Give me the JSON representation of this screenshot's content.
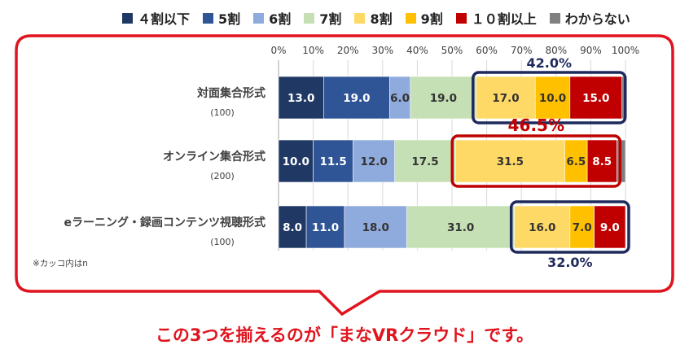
{
  "legend": [
    {
      "label": "４割以下",
      "color": "#1f3864"
    },
    {
      "label": "5割",
      "color": "#2f5597"
    },
    {
      "label": "6割",
      "color": "#8faadc"
    },
    {
      "label": "7割",
      "color": "#c5e0b4"
    },
    {
      "label": "8割",
      "color": "#ffd966"
    },
    {
      "label": "9割",
      "color": "#ffc000"
    },
    {
      "label": "１０割以上",
      "color": "#c00000"
    },
    {
      "label": "わからない",
      "color": "#808080"
    }
  ],
  "note": "※カッコ内はn",
  "caption": "この3つを揃えるのが「まなVRクラウド」です。",
  "chart_data": {
    "type": "bar",
    "orientation": "horizontal",
    "stacked": true,
    "xlim": [
      0,
      100
    ],
    "xticks": [
      "0%",
      "10%",
      "20%",
      "30%",
      "40%",
      "50%",
      "60%",
      "70%",
      "80%",
      "90%",
      "100%"
    ],
    "grid": true,
    "legend_position": "top",
    "categories": [
      {
        "label": "対面集合形式",
        "n": "(100)"
      },
      {
        "label": "オンライン集合形式",
        "n": "(200)"
      },
      {
        "label": "eラーニング・録画コンテンツ視聴形式",
        "n": "(100)"
      }
    ],
    "series": [
      {
        "name": "４割以下",
        "values": [
          13.0,
          10.0,
          8.0
        ]
      },
      {
        "name": "5割",
        "values": [
          19.0,
          11.5,
          11.0
        ]
      },
      {
        "name": "6割",
        "values": [
          6.0,
          12.0,
          18.0
        ]
      },
      {
        "name": "7割",
        "values": [
          19.0,
          17.5,
          31.0
        ]
      },
      {
        "name": "8割",
        "values": [
          17.0,
          31.5,
          16.0
        ]
      },
      {
        "name": "9割",
        "values": [
          10.0,
          6.5,
          7.0
        ]
      },
      {
        "name": "１０割以上",
        "values": [
          15.0,
          8.5,
          9.0
        ]
      },
      {
        "name": "わからない",
        "values": [
          1.0,
          2.5,
          0.0
        ]
      }
    ],
    "highlights": [
      {
        "row": 0,
        "label": "42.0%",
        "color": "#1f2a5c",
        "label_color": "#1f2a5c",
        "label_pos": "above"
      },
      {
        "row": 1,
        "label": "46.5%",
        "color": "#c00000",
        "label_color": "#c00000",
        "label_pos": "above"
      },
      {
        "row": 2,
        "label": "32.0%",
        "color": "#1f2a5c",
        "label_color": "#1f2a5c",
        "label_pos": "below"
      }
    ]
  }
}
